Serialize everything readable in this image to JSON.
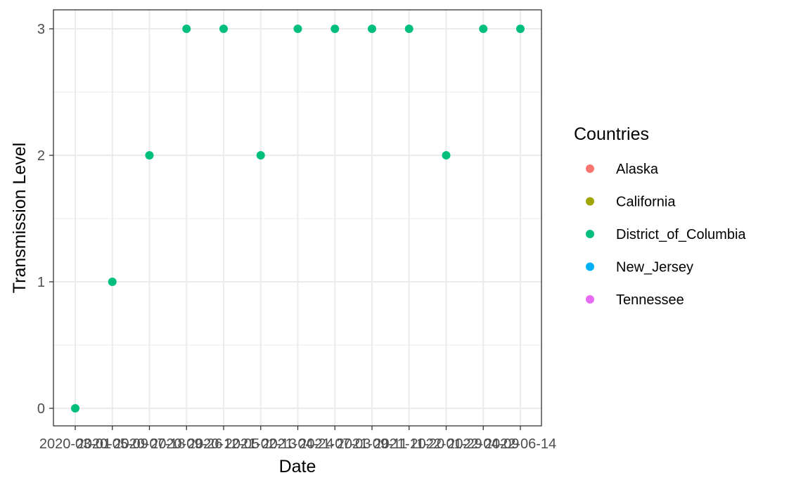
{
  "chart_data": {
    "type": "scatter",
    "xlabel": "Date",
    "ylabel": "Transmission Level",
    "x_tick_labels": [
      "2020-03-01",
      "2020-05-09",
      "2020-07-18",
      "2020-09-26",
      "2020-12-05",
      "2021-02-13",
      "2021-04-24",
      "2021-07-03",
      "2021-09-11",
      "2021-11-20",
      "2022-01-29",
      "2022-04-09",
      "2022-06-14"
    ],
    "y_ticks": [
      0,
      1,
      2,
      3
    ],
    "ylim": [
      0,
      3
    ],
    "grid": true,
    "legend": {
      "title": "Countries",
      "placement": "right",
      "entries": [
        {
          "name": "Alaska",
          "color": "#F8766D"
        },
        {
          "name": "California",
          "color": "#A3A500"
        },
        {
          "name": "District_of_Columbia",
          "color": "#00BF7D"
        },
        {
          "name": "New_Jersey",
          "color": "#00B0F6"
        },
        {
          "name": "Tennessee",
          "color": "#E76BF3"
        }
      ]
    },
    "series": [
      {
        "name": "District_of_Columbia",
        "color": "#00BF7D",
        "points": [
          {
            "x": "2020-03-01",
            "y": 0
          },
          {
            "x": "2020-05-09",
            "y": 1
          },
          {
            "x": "2020-07-18",
            "y": 2
          },
          {
            "x": "2020-09-26",
            "y": 3
          },
          {
            "x": "2020-12-05",
            "y": 3
          },
          {
            "x": "2021-02-13",
            "y": 2
          },
          {
            "x": "2021-04-24",
            "y": 3
          },
          {
            "x": "2021-07-03",
            "y": 3
          },
          {
            "x": "2021-09-11",
            "y": 3
          },
          {
            "x": "2021-11-20",
            "y": 3
          },
          {
            "x": "2022-01-29",
            "y": 2
          },
          {
            "x": "2022-04-09",
            "y": 3
          },
          {
            "x": "2022-06-14",
            "y": 3
          }
        ]
      }
    ]
  }
}
